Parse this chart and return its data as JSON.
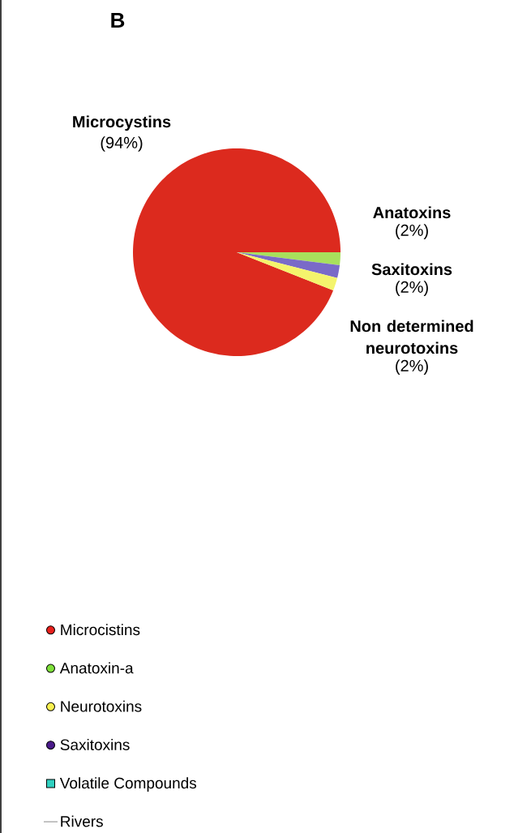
{
  "chart_data": [
    {
      "type": "pie",
      "title": "B",
      "categories": [
        "Microcystins",
        "Anatoxins",
        "Saxitoxins",
        "Non determined neurotoxins"
      ],
      "values": [
        94,
        2,
        2,
        2
      ],
      "colors": [
        "#dc2a1e",
        "#a8e05c",
        "#7a6ac8",
        "#f4f46c"
      ],
      "value_labels": [
        "(94%)",
        "(2%)",
        "(2%)",
        "(2%)"
      ]
    },
    {
      "type": "other",
      "legend": "bottom left",
      "series": [
        {
          "name": "Microcistins",
          "color": "#e8201c",
          "marker": "circle"
        },
        {
          "name": "Anatoxin-a",
          "color": "#7ee03a",
          "marker": "circle"
        },
        {
          "name": "Neurotoxins",
          "color": "#f8f050",
          "marker": "circle"
        },
        {
          "name": "Saxitoxins",
          "color": "#4a1a8a",
          "marker": "circle"
        },
        {
          "name": "Volatile Compounds",
          "color": "#30d0c0",
          "marker": "square"
        },
        {
          "name": "Rivers",
          "color": "#b0b0b0",
          "marker": "none",
          "line_style": "solid"
        }
      ]
    }
  ]
}
